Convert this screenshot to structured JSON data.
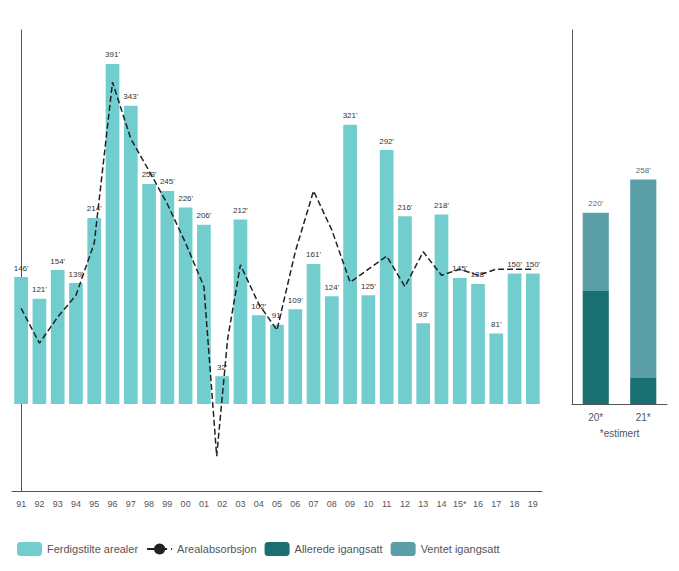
{
  "chart_data": [
    {
      "type": "bar",
      "categories": [
        "91",
        "92",
        "93",
        "94",
        "95",
        "96",
        "97",
        "98",
        "99",
        "00",
        "01",
        "02",
        "03",
        "04",
        "05",
        "06",
        "07",
        "08",
        "09",
        "10",
        "11",
        "12",
        "13",
        "14",
        "15*",
        "16",
        "17",
        "18",
        "19"
      ],
      "series": [
        {
          "name": "Ferdigstilte arealer",
          "type": "bar",
          "color": "#72CECE",
          "values": [
            146,
            121,
            154,
            139,
            214,
            391,
            343,
            253,
            245,
            226,
            206,
            32,
            212,
            102,
            91,
            109,
            161,
            124,
            321,
            125,
            292,
            216,
            93,
            218,
            145,
            138,
            81,
            150,
            150
          ],
          "value_labels": [
            "146'",
            "121'",
            "154'",
            "139'",
            "214'",
            "391'",
            "343'",
            "253'",
            "245'",
            "226'",
            "206'",
            "32'",
            "212'",
            "102'",
            "91'",
            "109'",
            "161'",
            "124'",
            "321'",
            "125'",
            "292'",
            "216'",
            "93'",
            "218'",
            "145'",
            "138'",
            "81'",
            "150'",
            "150'"
          ]
        },
        {
          "name": "Arealabsorbsjon",
          "type": "line",
          "color": "#222222",
          "line_style": "dashed",
          "x": [
            0,
            1,
            2,
            3,
            4,
            5,
            6,
            7,
            8,
            9,
            10,
            10.7,
            11.3,
            12,
            13,
            14,
            15,
            16,
            17,
            18,
            19,
            20,
            21,
            22,
            23,
            24,
            25,
            26,
            27,
            28
          ],
          "values": [
            110,
            70,
            100,
            125,
            185,
            370,
            305,
            268,
            230,
            185,
            135,
            -60,
            75,
            160,
            115,
            85,
            175,
            245,
            200,
            140,
            155,
            170,
            135,
            175,
            148,
            155,
            148,
            155,
            155,
            155
          ]
        }
      ],
      "ylim": [
        -100,
        430
      ],
      "data_labels": true,
      "grid": false,
      "legend": "lower left",
      "tick_labels": "x"
    },
    {
      "type": "bar",
      "categories": [
        "20*",
        "21*"
      ],
      "stacked": true,
      "series": [
        {
          "name": "Allerede igangsatt",
          "color": "#1a7070",
          "values": [
            130,
            30
          ]
        },
        {
          "name": "Ventet igangsatt",
          "color": "#5a9ea8",
          "values": [
            90,
            228
          ]
        }
      ],
      "totals": [
        220,
        258
      ],
      "total_labels": [
        "220'",
        "258'"
      ],
      "xlabel": "*estimert",
      "ylim": [
        0,
        430
      ],
      "grid": false,
      "legend": "lower left",
      "tick_labels": "x"
    }
  ]
}
